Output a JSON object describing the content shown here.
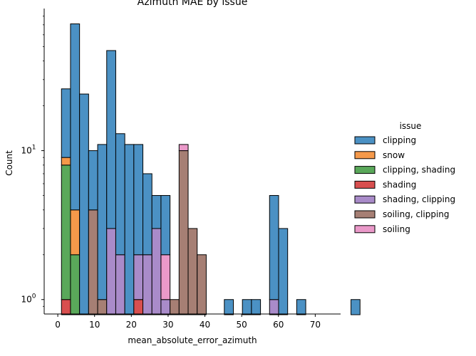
{
  "chart_data": {
    "type": "bar",
    "subtype": "stacked histogram",
    "title": "Azimuth MAE by issue",
    "xlabel": "mean_absolute_error_azimuth",
    "ylabel": "Count",
    "xlim": [
      -3.7,
      76.9
    ],
    "ylim": [
      0.8,
      90
    ],
    "yscale": "log",
    "grid": false,
    "legend_position": "right",
    "bin_width": 2.46,
    "bin_start": 1.0,
    "x_ticks": [
      0,
      10,
      20,
      30,
      40,
      50,
      60,
      70
    ],
    "y_ticks": [
      {
        "value": 1,
        "base": "10",
        "exp": "0"
      },
      {
        "value": 10,
        "base": "10",
        "exp": "1"
      }
    ],
    "legend": {
      "title": "issue",
      "entries": [
        "clipping",
        "snow",
        "clipping, shading",
        "shading",
        "shading, clipping",
        "soiling, clipping",
        "soiling"
      ]
    },
    "series": [
      {
        "name": "shading",
        "color": "#d84f4f",
        "values": [
          1,
          0,
          0,
          0,
          0,
          0,
          0,
          0,
          1,
          0,
          0,
          0,
          0,
          0,
          0,
          0,
          0,
          0,
          0,
          0,
          0,
          0,
          0,
          0,
          0,
          0,
          0,
          0,
          0,
          0,
          0,
          0,
          0
        ]
      },
      {
        "name": "clipping, shading",
        "color": "#5aa85a",
        "values": [
          7,
          2,
          0,
          0,
          0,
          0,
          0,
          0,
          0,
          0,
          0,
          0,
          0,
          0,
          0,
          0,
          0,
          0,
          0,
          0,
          0,
          0,
          0,
          0,
          0,
          0,
          0,
          0,
          0,
          0,
          0,
          0,
          0
        ]
      },
      {
        "name": "snow",
        "color": "#f5994a",
        "values": [
          1,
          2,
          0,
          0,
          0,
          0,
          0,
          0,
          0,
          0,
          0,
          0,
          0,
          0,
          0,
          0,
          0,
          0,
          0,
          0,
          0,
          0,
          0,
          0,
          0,
          0,
          0,
          0,
          0,
          0,
          0,
          0,
          0
        ]
      },
      {
        "name": "soiling, clipping",
        "color": "#a67f74",
        "values": [
          0,
          0,
          0,
          4,
          1,
          0,
          0,
          0,
          0,
          0,
          0,
          0,
          1,
          10,
          3,
          2,
          0,
          0,
          0,
          0,
          0,
          0,
          0,
          0,
          0,
          0,
          0,
          0,
          0,
          0,
          0,
          0,
          0
        ]
      },
      {
        "name": "shading, clipping",
        "color": "#a98bc9",
        "values": [
          0,
          0,
          0,
          0,
          0,
          3,
          2,
          0,
          1,
          2,
          3,
          1,
          0,
          0,
          0,
          0,
          0,
          0,
          0,
          0,
          0,
          0,
          0,
          1,
          0,
          0,
          0,
          0,
          0,
          0,
          0,
          0,
          0
        ]
      },
      {
        "name": "soiling",
        "color": "#ea99c9",
        "values": [
          0,
          0,
          0,
          0,
          0,
          0,
          0,
          0,
          0,
          0,
          0,
          1,
          0,
          1,
          0,
          0,
          0,
          0,
          0,
          0,
          0,
          0,
          0,
          0,
          0,
          0,
          0,
          0,
          0,
          0,
          0,
          0,
          0
        ]
      },
      {
        "name": "clipping",
        "color": "#4b91c4",
        "values": [
          17,
          67,
          24,
          6,
          10,
          44,
          11,
          11,
          9,
          5,
          2,
          3,
          0,
          0,
          0,
          0,
          0,
          0,
          1,
          0,
          1,
          1,
          0,
          4,
          3,
          0,
          1,
          0,
          0,
          0,
          0,
          0,
          1
        ]
      }
    ]
  }
}
